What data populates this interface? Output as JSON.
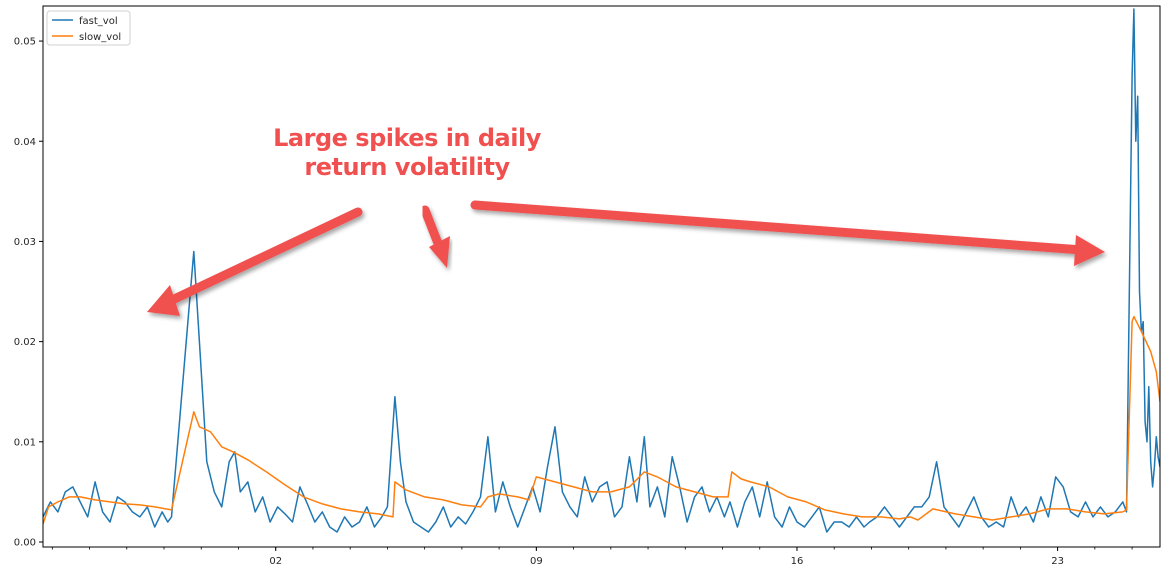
{
  "chart_data": {
    "type": "line",
    "title": "",
    "xlabel": "",
    "ylabel": "",
    "xlim": [
      0,
      600
    ],
    "ylim": [
      -0.0005,
      0.0535
    ],
    "yticks": [
      0.0,
      0.01,
      0.02,
      0.03,
      0.04,
      0.05
    ],
    "ytick_labels": [
      "0.00",
      "0.01",
      "0.02",
      "0.03",
      "0.04",
      "0.05"
    ],
    "xticks": [
      125,
      265,
      405,
      545
    ],
    "xtick_labels": [
      "02",
      "09",
      "16",
      "23"
    ],
    "grid": false,
    "legend": "top-left",
    "series": [
      {
        "name": "fast_vol",
        "color": "#1f77b4",
        "points": [
          [
            0,
            0.0025
          ],
          [
            4,
            0.004
          ],
          [
            8,
            0.003
          ],
          [
            12,
            0.005
          ],
          [
            16,
            0.0055
          ],
          [
            20,
            0.004
          ],
          [
            24,
            0.0025
          ],
          [
            28,
            0.006
          ],
          [
            32,
            0.003
          ],
          [
            36,
            0.002
          ],
          [
            40,
            0.0045
          ],
          [
            44,
            0.004
          ],
          [
            48,
            0.003
          ],
          [
            52,
            0.0025
          ],
          [
            56,
            0.0035
          ],
          [
            60,
            0.0015
          ],
          [
            64,
            0.003
          ],
          [
            67,
            0.002
          ],
          [
            69,
            0.0025
          ],
          [
            81,
            0.029
          ],
          [
            84,
            0.02
          ],
          [
            88,
            0.008
          ],
          [
            92,
            0.005
          ],
          [
            96,
            0.0035
          ],
          [
            100,
            0.008
          ],
          [
            103,
            0.009
          ],
          [
            106,
            0.005
          ],
          [
            110,
            0.006
          ],
          [
            114,
            0.003
          ],
          [
            118,
            0.0045
          ],
          [
            122,
            0.002
          ],
          [
            126,
            0.0035
          ],
          [
            130,
            0.0028
          ],
          [
            134,
            0.002
          ],
          [
            138,
            0.0055
          ],
          [
            142,
            0.0038
          ],
          [
            146,
            0.002
          ],
          [
            150,
            0.003
          ],
          [
            154,
            0.0015
          ],
          [
            158,
            0.001
          ],
          [
            162,
            0.0025
          ],
          [
            166,
            0.0015
          ],
          [
            170,
            0.002
          ],
          [
            174,
            0.0035
          ],
          [
            178,
            0.0015
          ],
          [
            182,
            0.0025
          ],
          [
            185,
            0.0035
          ],
          [
            189,
            0.0145
          ],
          [
            192,
            0.008
          ],
          [
            195,
            0.004
          ],
          [
            199,
            0.002
          ],
          [
            203,
            0.0015
          ],
          [
            207,
            0.001
          ],
          [
            211,
            0.002
          ],
          [
            215,
            0.0035
          ],
          [
            219,
            0.0015
          ],
          [
            223,
            0.0025
          ],
          [
            227,
            0.0018
          ],
          [
            231,
            0.003
          ],
          [
            235,
            0.0045
          ],
          [
            239,
            0.0105
          ],
          [
            243,
            0.003
          ],
          [
            247,
            0.006
          ],
          [
            251,
            0.0035
          ],
          [
            255,
            0.0015
          ],
          [
            259,
            0.0035
          ],
          [
            263,
            0.0055
          ],
          [
            267,
            0.003
          ],
          [
            271,
            0.0075
          ],
          [
            275,
            0.0115
          ],
          [
            279,
            0.005
          ],
          [
            283,
            0.0035
          ],
          [
            287,
            0.0025
          ],
          [
            291,
            0.0065
          ],
          [
            295,
            0.004
          ],
          [
            299,
            0.0055
          ],
          [
            303,
            0.006
          ],
          [
            307,
            0.0025
          ],
          [
            311,
            0.0035
          ],
          [
            315,
            0.0085
          ],
          [
            319,
            0.004
          ],
          [
            323,
            0.0105
          ],
          [
            326,
            0.0035
          ],
          [
            330,
            0.0055
          ],
          [
            334,
            0.0025
          ],
          [
            338,
            0.0085
          ],
          [
            342,
            0.0055
          ],
          [
            346,
            0.002
          ],
          [
            350,
            0.0045
          ],
          [
            354,
            0.0055
          ],
          [
            358,
            0.003
          ],
          [
            362,
            0.0045
          ],
          [
            366,
            0.0025
          ],
          [
            369,
            0.004
          ],
          [
            373,
            0.0015
          ],
          [
            377,
            0.004
          ],
          [
            381,
            0.0055
          ],
          [
            385,
            0.0025
          ],
          [
            389,
            0.006
          ],
          [
            393,
            0.0025
          ],
          [
            397,
            0.0015
          ],
          [
            401,
            0.0035
          ],
          [
            405,
            0.002
          ],
          [
            409,
            0.0015
          ],
          [
            413,
            0.0025
          ],
          [
            417,
            0.0035
          ],
          [
            421,
            0.001
          ],
          [
            425,
            0.002
          ],
          [
            429,
            0.002
          ],
          [
            433,
            0.0015
          ],
          [
            437,
            0.0025
          ],
          [
            441,
            0.0015
          ],
          [
            444,
            0.002
          ],
          [
            448,
            0.0025
          ],
          [
            452,
            0.0035
          ],
          [
            456,
            0.0025
          ],
          [
            460,
            0.0015
          ],
          [
            464,
            0.0025
          ],
          [
            468,
            0.0035
          ],
          [
            472,
            0.0035
          ],
          [
            476,
            0.0045
          ],
          [
            480,
            0.008
          ],
          [
            484,
            0.0035
          ],
          [
            488,
            0.0025
          ],
          [
            492,
            0.0015
          ],
          [
            496,
            0.003
          ],
          [
            500,
            0.0045
          ],
          [
            504,
            0.0025
          ],
          [
            508,
            0.0015
          ],
          [
            512,
            0.002
          ],
          [
            516,
            0.0015
          ],
          [
            520,
            0.0045
          ],
          [
            524,
            0.0025
          ],
          [
            528,
            0.0035
          ],
          [
            532,
            0.002
          ],
          [
            536,
            0.0045
          ],
          [
            540,
            0.0025
          ],
          [
            544,
            0.0065
          ],
          [
            548,
            0.0055
          ],
          [
            552,
            0.003
          ],
          [
            556,
            0.0025
          ],
          [
            560,
            0.004
          ],
          [
            564,
            0.0025
          ],
          [
            568,
            0.0035
          ],
          [
            572,
            0.0025
          ],
          [
            576,
            0.003
          ],
          [
            580,
            0.004
          ],
          [
            582,
            0.003
          ],
          [
            585,
            0.0465
          ],
          [
            586,
            0.0532
          ],
          [
            587,
            0.04
          ],
          [
            588,
            0.0445
          ],
          [
            589,
            0.025
          ],
          [
            590,
            0.021
          ],
          [
            591,
            0.022
          ],
          [
            592,
            0.012
          ],
          [
            593,
            0.01
          ],
          [
            594,
            0.0155
          ],
          [
            595,
            0.008
          ],
          [
            596,
            0.0055
          ],
          [
            597,
            0.0075
          ],
          [
            598,
            0.0105
          ],
          [
            599,
            0.0085
          ],
          [
            600,
            0.0075
          ]
        ]
      },
      {
        "name": "slow_vol",
        "color": "#ff7f0e",
        "points": [
          [
            0,
            0.0018
          ],
          [
            3,
            0.0035
          ],
          [
            8,
            0.004
          ],
          [
            14,
            0.0045
          ],
          [
            20,
            0.0045
          ],
          [
            28,
            0.0042
          ],
          [
            36,
            0.004
          ],
          [
            44,
            0.0038
          ],
          [
            52,
            0.0037
          ],
          [
            60,
            0.0035
          ],
          [
            69,
            0.0032
          ],
          [
            81,
            0.013
          ],
          [
            84,
            0.0115
          ],
          [
            90,
            0.011
          ],
          [
            96,
            0.0095
          ],
          [
            102,
            0.009
          ],
          [
            110,
            0.0082
          ],
          [
            120,
            0.007
          ],
          [
            130,
            0.0057
          ],
          [
            140,
            0.0045
          ],
          [
            150,
            0.0038
          ],
          [
            160,
            0.0033
          ],
          [
            170,
            0.003
          ],
          [
            180,
            0.0028
          ],
          [
            188,
            0.0025
          ],
          [
            189,
            0.006
          ],
          [
            195,
            0.0052
          ],
          [
            205,
            0.0045
          ],
          [
            215,
            0.0042
          ],
          [
            225,
            0.0037
          ],
          [
            235,
            0.0035
          ],
          [
            239,
            0.0045
          ],
          [
            245,
            0.0048
          ],
          [
            255,
            0.0045
          ],
          [
            261,
            0.0042
          ],
          [
            265,
            0.0065
          ],
          [
            275,
            0.006
          ],
          [
            285,
            0.0055
          ],
          [
            295,
            0.005
          ],
          [
            305,
            0.005
          ],
          [
            315,
            0.0055
          ],
          [
            323,
            0.007
          ],
          [
            330,
            0.0065
          ],
          [
            340,
            0.0055
          ],
          [
            350,
            0.005
          ],
          [
            360,
            0.0045
          ],
          [
            368,
            0.0045
          ],
          [
            370,
            0.007
          ],
          [
            375,
            0.0063
          ],
          [
            380,
            0.006
          ],
          [
            390,
            0.0055
          ],
          [
            400,
            0.0045
          ],
          [
            410,
            0.004
          ],
          [
            420,
            0.0032
          ],
          [
            430,
            0.0028
          ],
          [
            440,
            0.0025
          ],
          [
            450,
            0.0025
          ],
          [
            460,
            0.0023
          ],
          [
            466,
            0.0025
          ],
          [
            470,
            0.0022
          ],
          [
            478,
            0.0033
          ],
          [
            490,
            0.0028
          ],
          [
            500,
            0.0025
          ],
          [
            510,
            0.0022
          ],
          [
            520,
            0.0025
          ],
          [
            530,
            0.0028
          ],
          [
            540,
            0.0033
          ],
          [
            550,
            0.0033
          ],
          [
            560,
            0.003
          ],
          [
            570,
            0.0028
          ],
          [
            580,
            0.003
          ],
          [
            582,
            0.0032
          ],
          [
            585,
            0.022
          ],
          [
            586,
            0.0225
          ],
          [
            590,
            0.021
          ],
          [
            595,
            0.019
          ],
          [
            598,
            0.017
          ],
          [
            600,
            0.014
          ]
        ]
      }
    ],
    "annotations": [
      {
        "text_lines": [
          "Large spikes in daily",
          "return volatility"
        ]
      }
    ]
  }
}
